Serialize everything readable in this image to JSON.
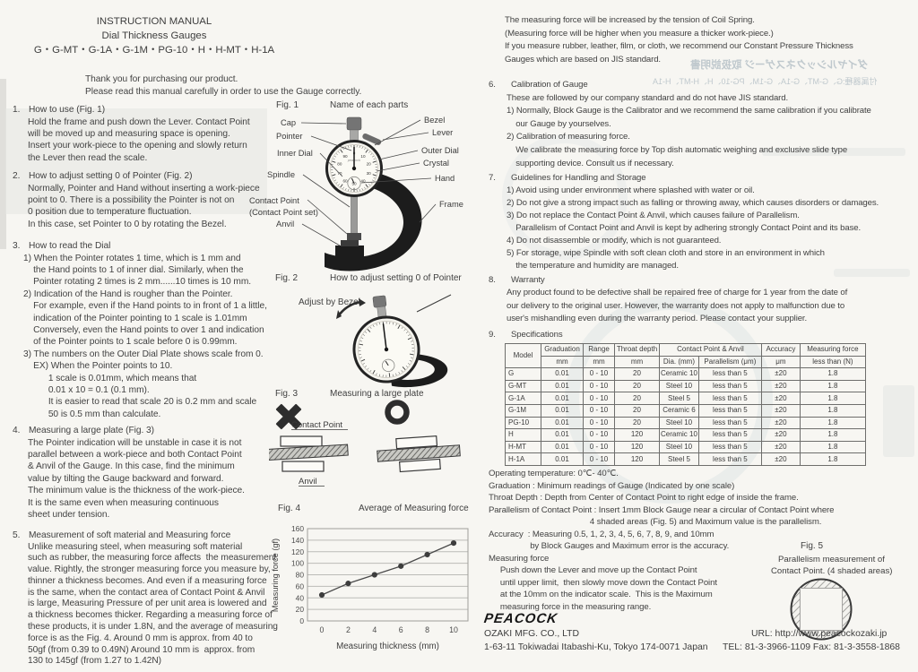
{
  "header": {
    "title": "INSTRUCTION MANUAL",
    "subtitle": "Dial Thickness Gauges",
    "models": "G・G-MT・G-1A・G-1M・PG-10・H・H-MT・H-1A",
    "intro": [
      "Thank you for purchasing our product.",
      "Please read this manual carefully in order to use the Gauge correctly."
    ]
  },
  "sections_left": [
    {
      "num": "1.",
      "title": "How to use (Fig. 1)",
      "lines": [
        "Hold the frame and push down the Lever. Contact Point",
        "will be moved up and measuring space is opening.",
        "Insert your work-piece to the opening and slowly return",
        "the Lever then read the scale."
      ]
    },
    {
      "num": "2.",
      "title": "How to adjust setting 0 of Pointer (Fig. 2)",
      "lines": [
        "Normally, Pointer and Hand without inserting a work-piece",
        "point to 0. There is a possibility the Pointer is not on",
        "0 position due to temperature fluctuation.",
        "In this case, set Pointer to 0 by rotating the Bezel."
      ]
    },
    {
      "num": "3.",
      "title": "How to read the Dial",
      "lines": [
        "1) When the Pointer rotates 1 time, which is 1 mm and",
        "    the Hand points to 1 of inner dial. Similarly, when the",
        "    Pointer rotating 2 times is 2 mm......10 times is 10 mm.",
        "2) Indication of the Hand is rougher than the Pointer.",
        "    For example, even if the Hand points to in front of 1 a little,",
        "    indication of the Pointer pointing to 1 scale is 1.01mm",
        "    Conversely, even the Hand points to over 1 and indication",
        "    of the Pointer points to 1 scale before 0 is 0.99mm.",
        "3) The numbers on the Outer Dial Plate shows scale from 0.",
        "    EX) When the Pointer points to 10.",
        "          1 scale is 0.01mm, which means that",
        "          0.01 x 10 = 0.1 (0.1 mm).",
        "          It is easier to read that scale 20 is 0.2 mm and scale",
        "          50 is 0.5 mm than calculate."
      ]
    },
    {
      "num": "4.",
      "title": "Measuring a large plate (Fig. 3)",
      "lines": [
        "The Pointer indication will be unstable in case it is not",
        "parallel between a work-piece and both Contact Point",
        "& Anvil of the Gauge. In this case, find the minimum",
        "value by tilting the Gauge backward and forward.",
        "The minimum value is the thickness of the work-piece.",
        "It is the same even when measuring continuous",
        "sheet under tension."
      ]
    },
    {
      "num": "5.",
      "title": "Measurement of soft material and Measuring force",
      "lines": [
        "Unlike measuring steel, when measuring soft material",
        "such as rubber, the measuring force affects  the measurement",
        "value. Rightly, the stronger measuring force you measure by,",
        "thinner a thickness becomes. And even if a measuring force",
        "is the same, when the contact area of Contact Point & Anvil",
        "is large, Measuring Pressure of per unit area is lowered and",
        "a thickness becomes thicker. Regarding a measuring force of",
        "these products, it is under 1.8N, and the average of measuring",
        "force is as the Fig. 4. Around 0 mm is approx. from 40 to",
        "50gf (from 0.39 to 0.49N) Around 10 mm is  approx. from",
        "130 to 145gf (from 1.27 to 1.42N)"
      ]
    }
  ],
  "right_intro": [
    "The measuring force will be increased by the tension of Coil Spring.",
    "(Measuring force will be higher when you measure a thicker work-piece.)",
    "If you measure rubber, leather, film, or cloth, we recommend our Constant Pressure Thickness",
    "Gauges which are based on JIS standard."
  ],
  "sections_right": [
    {
      "num": "6.",
      "title": "Calibration of Gauge",
      "lines": [
        "These are followed by our company standard and do not have JIS standard.",
        "1) Normally, Block Gauge is the Calibrator and we recommend the same calibration if you calibrate",
        "    our Gauge by yourselves.",
        "2) Calibration of measuring force.",
        "    We calibrate the measuring force by Top dish automatic weighing and exclusive slide type",
        "    supporting device. Consult us if necessary."
      ]
    },
    {
      "num": "7.",
      "title": "Guidelines for Handling and Storage",
      "lines": [
        "1) Avoid using under environment where splashed with water or oil.",
        "2) Do not give a strong impact such as falling or throwing away, which causes disorders or damages.",
        "3) Do not replace the Contact Point & Anvil, which causes failure of Parallelism.",
        "    Parallelism of Contact Point and Anvil is kept by adhering strongly Contact Point and its base.",
        "4) Do not disassemble or modify, which is not guaranteed.",
        "5) For storage, wipe Spindle with soft clean cloth and store in an environment in which",
        "    the temperature and humidity are managed."
      ]
    },
    {
      "num": "8.",
      "title": "Warranty",
      "lines": [
        "Any product found to be defective shall be repaired free of charge for 1 year from the date of",
        "our delivery to the original user. However, the warranty does not apply to malfunction due to",
        "user's mishandling even during the warranty period. Please contact your supplier."
      ]
    },
    {
      "num": "9.",
      "title": "Specifications",
      "lines": []
    }
  ],
  "spec_table": {
    "header_row1": [
      "Model",
      "Graduation",
      "Range",
      "Throat depth",
      "Contact Point & Anvil",
      "Accuracy",
      "Measuring force"
    ],
    "header_row2": [
      "mm",
      "mm",
      "mm",
      "Dia. (mm)",
      "Parallelism (μm)",
      "μm",
      "less than (N)"
    ],
    "rows": [
      [
        "G",
        "0.01",
        "0 - 10",
        "20",
        "Ceramic 10",
        "less than 5",
        "±20",
        "1.8"
      ],
      [
        "G-MT",
        "0.01",
        "0 - 10",
        "20",
        "Steel 10",
        "less than 5",
        "±20",
        "1.8"
      ],
      [
        "G-1A",
        "0.01",
        "0 - 10",
        "20",
        "Steel 5",
        "less than 5",
        "±20",
        "1.8"
      ],
      [
        "G-1M",
        "0.01",
        "0 - 10",
        "20",
        "Ceramic 6",
        "less than 5",
        "±20",
        "1.8"
      ],
      [
        "PG-10",
        "0.01",
        "0 - 10",
        "20",
        "Steel  10",
        "less than 5",
        "±20",
        "1.8"
      ],
      [
        "H",
        "0.01",
        "0 - 10",
        "120",
        "Ceramic 10",
        "less than 5",
        "±20",
        "1.8"
      ],
      [
        "H-MT",
        "0.01",
        "0 - 10",
        "120",
        "Steel 10",
        "less than 5",
        "±20",
        "1.8"
      ],
      [
        "H-1A",
        "0.01",
        "0 - 10",
        "120",
        "Steel  5",
        "less than 5",
        "±20",
        "1.8"
      ]
    ]
  },
  "notes": [
    "Operating temperature: 0℃- 40℃.",
    "Graduation : Minimum readings of Gauge (Indicated by one scale)",
    "Throat Depth : Depth from Center of Contact Point to right edge of inside the frame.",
    "Parallelism of Contact Point : Insert 1mm Block Gauge near a circular of Contact Point where",
    "                                            4 shaded areas (Fig. 5) and Maximum value is the parallelism.",
    "Accuracy  : Measuring 0.5, 1, 2, 3, 4, 5, 6, 7, 8, 9, and 10mm",
    "                  by Block Gauges and Maximum error is the accuracy.",
    "Measuring force",
    "     Push down the Lever and move up the Contact Point",
    "     until upper limit,  then slowly move down the Contact Point",
    "     at the 10mm on the indicator scale.  This is the Maximum",
    "     measuring force in the measuring range."
  ],
  "figures": {
    "fig1": {
      "label": "Fig. 1",
      "caption": "Name of each parts",
      "labels_left": [
        "Cap",
        "Pointer",
        "Inner Dial",
        "Spindle",
        "Contact Point",
        "(Contact Point set)",
        "Anvil"
      ],
      "labels_right": [
        "Bezel",
        "Lever",
        "Outer Dial",
        "Crystal",
        "Hand",
        "Frame"
      ],
      "dial_numbers": [
        0,
        10,
        20,
        30,
        40,
        50,
        60,
        70,
        80,
        90
      ],
      "brand": "peacock"
    },
    "fig2": {
      "label": "Fig. 2",
      "caption": "How to adjust setting 0 of Pointer",
      "note": "Adjust by Bezel"
    },
    "fig3": {
      "label": "Fig. 3",
      "caption": "Measuring a large plate",
      "contact_point": "Contact Point",
      "anvil": "Anvil"
    },
    "fig4": {
      "label": "Fig. 4",
      "caption": "Average of Measuring force"
    },
    "fig5": {
      "label": "Fig. 5",
      "caption_line1": "Parallelism measurement of",
      "caption_line2": "Contact Point. (4 shaded areas)"
    }
  },
  "chart_data": {
    "type": "line",
    "title": "Average of Measuring force",
    "x": [
      0,
      2,
      4,
      6,
      8,
      10
    ],
    "values": [
      45,
      65,
      80,
      95,
      115,
      135
    ],
    "xlabel": "Measuring thickness  (mm)",
    "ylabel": "Measuring force (gf)",
    "ylim": [
      0,
      160
    ],
    "ytick_step": 20,
    "grid": true,
    "legend": "none"
  },
  "bleed_through": {
    "title_mirrored": "ダイヤルシックネスゲージ 取扱説明書",
    "models_mirrored": "付属器種:G、G-MT、G-1A、G-1M、PG-10、H、H-MT、H-1A"
  },
  "footer": {
    "logo": "PEACOCK",
    "company": "OZAKI MFG. CO., LTD",
    "address": "1-63-11 Tokiwadai Itabashi-Ku, Tokyo   174-0071 Japan",
    "url": "URL: http://www.peacockozaki.jp",
    "tel_fax": "TEL: 81-3-3966-1109  Fax: 81-3-3558-1868"
  }
}
